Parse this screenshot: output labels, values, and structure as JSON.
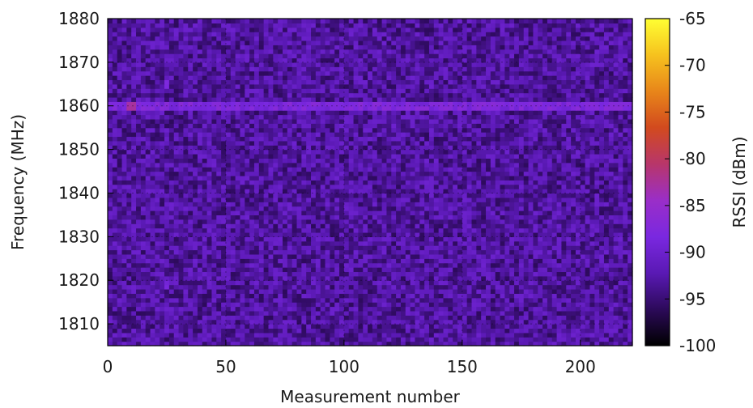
{
  "chart_data": {
    "type": "heatmap",
    "title": "",
    "xlabel": "Measurement number",
    "ylabel": "Frequency (MHz)",
    "xlim": [
      0,
      222
    ],
    "ylim": [
      1805,
      1880
    ],
    "xticks": [
      0,
      50,
      100,
      150,
      200
    ],
    "yticks": [
      1810,
      1820,
      1830,
      1840,
      1850,
      1860,
      1870,
      1880
    ],
    "grid": true,
    "colorbar": {
      "label": "RSSI (dBm)",
      "range": [
        -100,
        -65
      ],
      "ticks": [
        -100,
        -95,
        -90,
        -85,
        -80,
        -75,
        -70,
        -65
      ],
      "colormap": [
        "#000000",
        "#2c0a5a",
        "#5a19b4",
        "#7a28e0",
        "#9a2ec8",
        "#b8366a",
        "#d24a1e",
        "#e8861a",
        "#f6c21e",
        "#ffff33"
      ]
    },
    "background_level_dbm": -93,
    "features": [
      {
        "description": "persistent carrier",
        "frequency_mhz": 1860,
        "x_range": [
          0,
          222
        ],
        "rssi_dbm": -88
      },
      {
        "description": "strong burst",
        "frequency_mhz": 1860,
        "x_range": [
          8,
          12
        ],
        "rssi_dbm": -82
      },
      {
        "description": "weak spot",
        "frequency_mhz": 1865,
        "x_range": [
          24,
          26
        ],
        "rssi_dbm": -87
      },
      {
        "description": "weak spot",
        "frequency_mhz": 1819,
        "x_range": [
          24,
          26
        ],
        "rssi_dbm": -89
      }
    ]
  }
}
